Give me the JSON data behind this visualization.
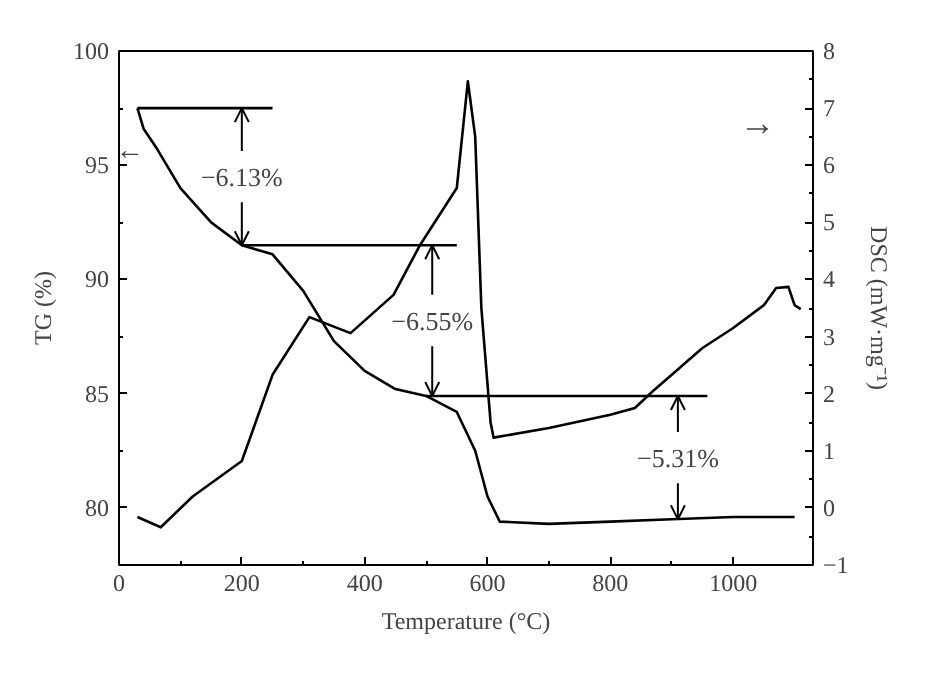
{
  "chart_data": {
    "type": "line",
    "xlabel": "Temperature (°C)",
    "ylabel": "TG (%)",
    "y2label": "DSC (mW·mg⁻¹)",
    "xlim": [
      0,
      1130
    ],
    "xticks": [
      0,
      200,
      400,
      600,
      800,
      1000
    ],
    "ylim": [
      77.5,
      100
    ],
    "yticks": [
      80,
      85,
      90,
      95,
      100
    ],
    "y2lim": [
      -1,
      8
    ],
    "y2ticks": [
      -1,
      0,
      1,
      2,
      3,
      4,
      5,
      6,
      7,
      8
    ],
    "grid": false,
    "line_style": "solid",
    "series": [
      {
        "color": "#000000",
        "x": [
          30,
          40,
          60,
          100,
          150,
          200,
          250,
          300,
          350,
          400,
          450,
          500,
          550,
          580,
          600,
          620,
          700,
          800,
          900,
          1000,
          1100
        ],
        "values": [
          97.5,
          96.6,
          95.8,
          94,
          92.5,
          91.5,
          91.1,
          89.5,
          87.3,
          86,
          85.2,
          84.9,
          84.2,
          82.5,
          80.5,
          79.4,
          79.3,
          79.4,
          79.5,
          79.6,
          79.6
        ]
      },
      {
        "color": "#000000",
        "axis": "y2",
        "x": [
          30,
          68,
          120,
          200,
          250,
          310,
          377,
          447,
          490,
          550,
          568,
          580,
          590,
          605,
          610,
          700,
          800,
          840,
          870,
          900,
          950,
          1000,
          1050,
          1070,
          1090,
          1100,
          1110
        ],
        "values": [
          -0.16,
          -0.34,
          0.2,
          0.82,
          2.33,
          3.34,
          3.06,
          3.73,
          4.6,
          5.6,
          7.47,
          6.5,
          3.5,
          1.5,
          1.23,
          1.4,
          1.63,
          1.75,
          2.05,
          2.33,
          2.8,
          3.15,
          3.55,
          3.85,
          3.87,
          3.55,
          3.48
        ]
      },
      {
        "color": "#000000",
        "x": [
          30,
          250
        ],
        "values": [
          97.5,
          97.5
        ]
      },
      {
        "color": "#000000",
        "x": [
          200,
          550
        ],
        "values": [
          91.5,
          91.5
        ]
      },
      {
        "color": "#000000",
        "x": [
          500,
          958
        ],
        "values": [
          84.9,
          84.9
        ]
      }
    ],
    "annotations": [
      {
        "text": "−6.13%",
        "x": 200,
        "y": 91.5
      },
      {
        "text": "−6.55%",
        "x": 510,
        "y": 84.9
      },
      {
        "text": "−5.31%",
        "x": 910,
        "y": 79.5
      },
      {
        "text": "←",
        "x": 40,
        "y": 96.6
      },
      "→"
    ]
  }
}
